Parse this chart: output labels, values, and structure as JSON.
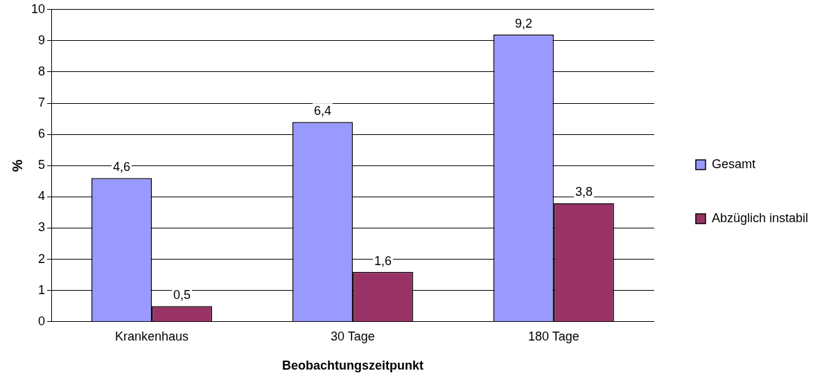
{
  "chart_data": {
    "type": "bar",
    "xlabel": "Beobachtungszeitpunkt",
    "ylabel": "%",
    "categories": [
      "Krankenhaus",
      "30 Tage",
      "180 Tage"
    ],
    "series": [
      {
        "name": "Gesamt",
        "color": "#9999ff",
        "values": [
          4.6,
          6.4,
          9.2
        ],
        "value_labels": [
          "4,6",
          "6,4",
          "9,2"
        ]
      },
      {
        "name": "Abzüglich instabil",
        "color": "#993366",
        "values": [
          0.5,
          1.6,
          3.8
        ],
        "value_labels": [
          "0,5",
          "1,6",
          "3,8"
        ]
      }
    ],
    "ylim": [
      0,
      10
    ],
    "yticks": [
      0,
      1,
      2,
      3,
      4,
      5,
      6,
      7,
      8,
      9,
      10
    ],
    "grid": "y",
    "legend": "right"
  }
}
